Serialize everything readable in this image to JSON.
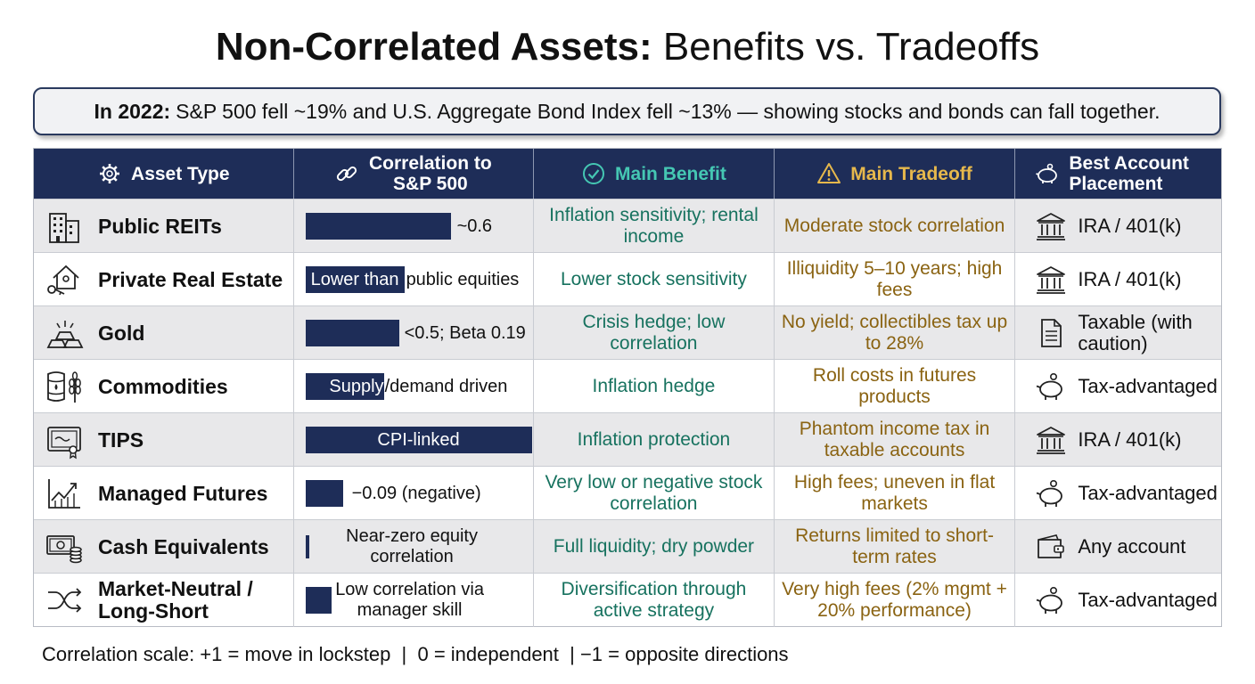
{
  "title": {
    "bold_part": "Non-Correlated Assets:",
    "rest": "Benefits vs. Tradeoffs"
  },
  "callout": {
    "lead": "In 2022:",
    "text": "S&P 500 fell ~19% and U.S. Aggregate Bond Index fell ~13% — showing stocks and bonds can fall together."
  },
  "headers": {
    "asset_type": "Asset Type",
    "correlation": "Correlation to S&P 500",
    "benefit": "Main Benefit",
    "tradeoff": "Main Tradeoff",
    "placement": "Best Account Placement"
  },
  "colors": {
    "navy": "#1e2d58",
    "benefit_text": "#17725f",
    "tradeoff_text": "#8a6312",
    "benefit_header": "#45c7b3",
    "tradeoff_header": "#e6b84c"
  },
  "rows": [
    {
      "asset": "Public REITs",
      "icon": "building-icon",
      "corr_text": "~0.6",
      "corr_value": 0.6,
      "benefit": "Inflation sensitivity; rental income",
      "tradeoff": "Moderate stock correlation",
      "placement": "IRA / 401(k)",
      "placement_icon": "bank-icon"
    },
    {
      "asset": "Private Real Estate",
      "icon": "house-key-icon",
      "corr_text": "Lower than public equities",
      "corr_value": null,
      "benefit": "Lower stock sensitivity",
      "tradeoff": "Illiquidity 5–10 years; high fees",
      "placement": "IRA / 401(k)",
      "placement_icon": "bank-icon"
    },
    {
      "asset": "Gold",
      "icon": "gold-bars-icon",
      "corr_text": "<0.5; Beta 0.19",
      "corr_value": 0.5,
      "benefit": "Crisis hedge; low correlation",
      "tradeoff": "No yield; collectibles tax up to 28%",
      "placement": "Taxable (with caution)",
      "placement_icon": "document-icon"
    },
    {
      "asset": "Commodities",
      "icon": "barrel-wheat-icon",
      "corr_text": "Supply/demand driven",
      "corr_value": null,
      "benefit": "Inflation hedge",
      "tradeoff": "Roll costs in futures products",
      "placement": "Tax-advantaged",
      "placement_icon": "piggy-bank-icon"
    },
    {
      "asset": "TIPS",
      "icon": "certificate-icon",
      "corr_text": "CPI-linked",
      "corr_value": null,
      "benefit": "Inflation protection",
      "tradeoff": "Phantom income tax in taxable accounts",
      "placement": "IRA / 401(k)",
      "placement_icon": "bank-icon"
    },
    {
      "asset": "Managed Futures",
      "icon": "line-chart-icon",
      "corr_text": "−0.09 (negative)",
      "corr_value": -0.09,
      "benefit": "Very low or negative stock correlation",
      "tradeoff": "High fees; uneven in flat markets",
      "placement": "Tax-advantaged",
      "placement_icon": "piggy-bank-icon"
    },
    {
      "asset": "Cash Equivalents",
      "icon": "cash-coins-icon",
      "corr_text": "Near-zero equity correlation",
      "corr_value": 0,
      "benefit": "Full liquidity; dry powder",
      "tradeoff": "Returns limited to short-term rates",
      "placement": "Any account",
      "placement_icon": "wallet-icon"
    },
    {
      "asset": "Market-Neutral / Long-Short",
      "icon": "shuffle-arrows-icon",
      "corr_text": "Low correlation via manager skill",
      "corr_value": null,
      "benefit": "Diversification through active strategy",
      "tradeoff": "Very high fees (2% mgmt + 20% performance)",
      "placement": "Tax-advantaged",
      "placement_icon": "piggy-bank-icon"
    }
  ],
  "footnote": "Correlation scale: +1 = move in lockstep  |  0 = independent  | −1 = opposite directions"
}
